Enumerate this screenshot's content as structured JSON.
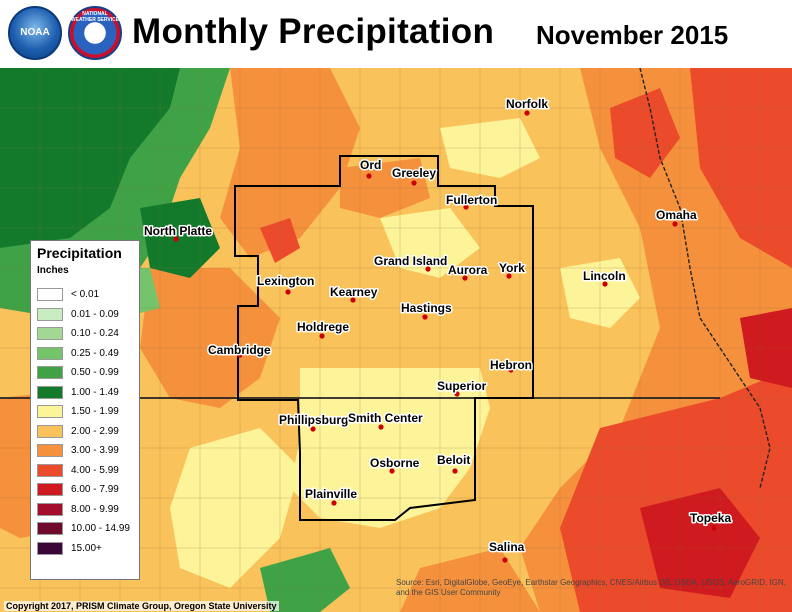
{
  "header": {
    "title": "Monthly Precipitation",
    "date": "November 2015",
    "logos": [
      {
        "icon": "noaa-logo-icon",
        "text": "NOAA"
      },
      {
        "icon": "nws-logo-icon",
        "text": "NATIONAL WEATHER SERVICE"
      }
    ]
  },
  "legend": {
    "title": "Precipitation",
    "unit": "Inches",
    "items": [
      {
        "label": "< 0.01",
        "color": "#ffffff"
      },
      {
        "label": "0.01 - 0.09",
        "color": "#c9ecc0"
      },
      {
        "label": "0.10 - 0.24",
        "color": "#a3d894"
      },
      {
        "label": "0.25 - 0.49",
        "color": "#75c46b"
      },
      {
        "label": "0.50 - 0.99",
        "color": "#3fa247"
      },
      {
        "label": "1.00 - 1.49",
        "color": "#137a2c"
      },
      {
        "label": "1.50 - 1.99",
        "color": "#fdf49a"
      },
      {
        "label": "2.00 - 2.99",
        "color": "#f9c25a"
      },
      {
        "label": "3.00 - 3.99",
        "color": "#f5913d"
      },
      {
        "label": "4.00 - 5.99",
        "color": "#eb4b2a"
      },
      {
        "label": "6.00 - 7.99",
        "color": "#cf1a1f"
      },
      {
        "label": "8.00 - 9.99",
        "color": "#a40e2c"
      },
      {
        "label": "10.00 - 14.99",
        "color": "#6e0a2a"
      },
      {
        "label": "15.00+",
        "color": "#3a0838"
      }
    ]
  },
  "cities": [
    {
      "name": "North Platte"
    },
    {
      "name": "Ord"
    },
    {
      "name": "Greeley"
    },
    {
      "name": "Fullerton"
    },
    {
      "name": "Norfolk"
    },
    {
      "name": "Omaha"
    },
    {
      "name": "Lexington"
    },
    {
      "name": "Kearney"
    },
    {
      "name": "Grand Island"
    },
    {
      "name": "Aurora"
    },
    {
      "name": "York"
    },
    {
      "name": "Lincoln"
    },
    {
      "name": "Hastings"
    },
    {
      "name": "Holdrege"
    },
    {
      "name": "Cambridge"
    },
    {
      "name": "Hebron"
    },
    {
      "name": "Superior"
    },
    {
      "name": "Phillipsburg"
    },
    {
      "name": "Smith Center"
    },
    {
      "name": "Osborne"
    },
    {
      "name": "Beloit"
    },
    {
      "name": "Plainville"
    },
    {
      "name": "Salina"
    },
    {
      "name": "Topeka"
    }
  ],
  "footer": {
    "copyright": "Copyright 2017, PRISM Climate Group, Oregon State University",
    "source": "Source: Esri, DigitalGlobe, GeoEye, Earthstar Geographics, CNES/Airbus DS, USDA, USGS, AeroGRID, IGN, and the GIS User Community"
  }
}
